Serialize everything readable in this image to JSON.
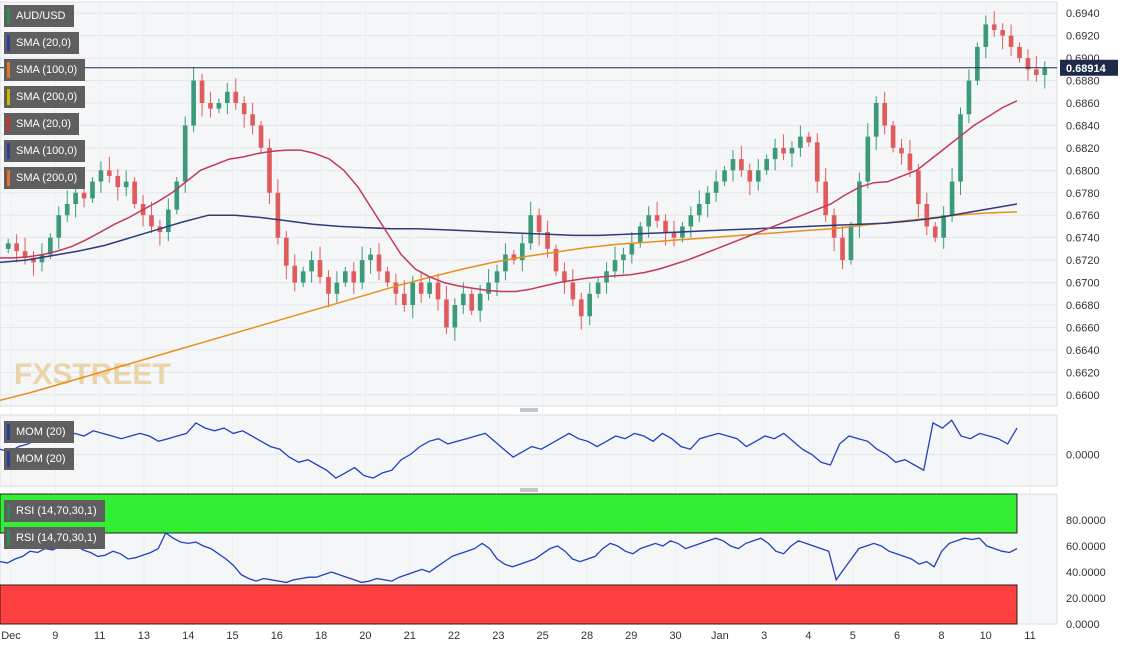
{
  "chart_data": [
    {
      "type": "candlestick",
      "symbol": "AUD/USD",
      "last_price": "0.68914",
      "ylim": [
        0.659,
        0.695
      ],
      "y_ticks": [
        "0.6940",
        "0.6920",
        "0.6900",
        "0.6880",
        "0.6860",
        "0.6840",
        "0.6820",
        "0.6800",
        "0.6780",
        "0.6760",
        "0.6740",
        "0.6720",
        "0.6700",
        "0.6680",
        "0.6660",
        "0.6640",
        "0.6620",
        "0.6600"
      ],
      "x_labels": [
        "Dec",
        "9",
        "11",
        "13",
        "14",
        "15",
        "16",
        "18",
        "20",
        "21",
        "22",
        "23",
        "25",
        "28",
        "29",
        "30",
        "Jan",
        "3",
        "4",
        "5",
        "6",
        "8",
        "10",
        "11"
      ],
      "legend": [
        {
          "label": "AUD/USD",
          "color": "#2e8b57"
        },
        {
          "label": "SMA (20,0)",
          "color": "#2c3e9e"
        },
        {
          "label": "SMA (100,0)",
          "color": "#e8722a"
        },
        {
          "label": "SMA (200,0)",
          "color": "#c9b800"
        },
        {
          "label": "SMA (20,0)",
          "color": "#c0392b"
        },
        {
          "label": "SMA (100,0)",
          "color": "#2c3e9e"
        },
        {
          "label": "SMA (200,0)",
          "color": "#e8722a"
        }
      ],
      "series_colors": {
        "up": "#3a9a7a",
        "down": "#e05c5c",
        "sma20": "#c23a5a",
        "sma100": "#2f3a7a",
        "sma200": "#e8901a"
      },
      "closes": [
        0.6735,
        0.6728,
        0.6722,
        0.6718,
        0.6725,
        0.674,
        0.676,
        0.677,
        0.678,
        0.6775,
        0.679,
        0.68,
        0.6795,
        0.6785,
        0.679,
        0.677,
        0.676,
        0.675,
        0.6745,
        0.6765,
        0.679,
        0.684,
        0.688,
        0.686,
        0.6855,
        0.686,
        0.687,
        0.686,
        0.685,
        0.684,
        0.682,
        0.678,
        0.674,
        0.6715,
        0.67,
        0.671,
        0.672,
        0.6705,
        0.669,
        0.67,
        0.671,
        0.67,
        0.672,
        0.6725,
        0.671,
        0.67,
        0.669,
        0.668,
        0.67,
        0.669,
        0.67,
        0.6685,
        0.666,
        0.668,
        0.669,
        0.6675,
        0.669,
        0.67,
        0.671,
        0.6725,
        0.672,
        0.6735,
        0.676,
        0.6745,
        0.673,
        0.671,
        0.67,
        0.6685,
        0.667,
        0.669,
        0.67,
        0.671,
        0.672,
        0.6725,
        0.6735,
        0.675,
        0.676,
        0.6755,
        0.6745,
        0.674,
        0.675,
        0.676,
        0.677,
        0.678,
        0.679,
        0.68,
        0.681,
        0.68,
        0.679,
        0.68,
        0.681,
        0.682,
        0.6815,
        0.682,
        0.683,
        0.6825,
        0.679,
        0.676,
        0.674,
        0.672,
        0.675,
        0.679,
        0.683,
        0.686,
        0.684,
        0.682,
        0.6815,
        0.68,
        0.677,
        0.675,
        0.674,
        0.676,
        0.679,
        0.685,
        0.688,
        0.691,
        0.693,
        0.6925,
        0.692,
        0.691,
        0.69,
        0.689,
        0.6885,
        0.6891
      ],
      "sma20": [
        0.6722,
        0.6722,
        0.6723,
        0.6725,
        0.6728,
        0.6732,
        0.6738,
        0.6745,
        0.6752,
        0.6758,
        0.6765,
        0.6772,
        0.678,
        0.679,
        0.68,
        0.6805,
        0.681,
        0.6812,
        0.6815,
        0.6817,
        0.6818,
        0.6818,
        0.6815,
        0.681,
        0.68,
        0.6785,
        0.6765,
        0.6745,
        0.6725,
        0.6712,
        0.6705,
        0.67,
        0.6697,
        0.6695,
        0.6693,
        0.6692,
        0.6692,
        0.6694,
        0.6697,
        0.67,
        0.6702,
        0.6704,
        0.6705,
        0.6706,
        0.6707,
        0.6709,
        0.6712,
        0.6716,
        0.672,
        0.6725,
        0.673,
        0.6735,
        0.674,
        0.6745,
        0.675,
        0.6755,
        0.676,
        0.6765,
        0.677,
        0.6778,
        0.6785,
        0.6789,
        0.679,
        0.6795,
        0.68,
        0.681,
        0.682,
        0.683,
        0.684,
        0.6848,
        0.6856,
        0.6862
      ],
      "sma100": [
        0.6718,
        0.672,
        0.6724,
        0.6728,
        0.6733,
        0.674,
        0.6747,
        0.6754,
        0.676,
        0.676,
        0.6758,
        0.6755,
        0.6752,
        0.675,
        0.6749,
        0.6748,
        0.6748,
        0.6747,
        0.6746,
        0.6745,
        0.6744,
        0.6743,
        0.6742,
        0.6742,
        0.6743,
        0.6744,
        0.6745,
        0.6746,
        0.6747,
        0.6748,
        0.6749,
        0.675,
        0.6751,
        0.6752,
        0.6753,
        0.6755,
        0.6758,
        0.6762,
        0.6766,
        0.677
      ],
      "sma200": [
        0.6595,
        0.6602,
        0.661,
        0.6618,
        0.6626,
        0.6634,
        0.6642,
        0.665,
        0.6658,
        0.6666,
        0.6674,
        0.6682,
        0.669,
        0.6698,
        0.6705,
        0.6712,
        0.6718,
        0.6723,
        0.6727,
        0.6731,
        0.6734,
        0.6736,
        0.6738,
        0.674,
        0.6742,
        0.6744,
        0.6746,
        0.6748,
        0.6751,
        0.6754,
        0.6757,
        0.676,
        0.6762,
        0.6763
      ]
    },
    {
      "type": "line",
      "legend": [
        "MOM (20)",
        "MOM (20)"
      ],
      "y_ticks": [
        "0.0000"
      ],
      "color": "#2240c0",
      "values": [
        0.2,
        0.1,
        0.3,
        0.4,
        0.6,
        0.5,
        0.7,
        0.6,
        0.8,
        0.7,
        0.9,
        0.8,
        0.7,
        0.6,
        0.7,
        0.8,
        0.7,
        0.5,
        0.6,
        0.7,
        0.8,
        1.2,
        1.0,
        0.9,
        1.0,
        0.8,
        0.9,
        0.7,
        0.5,
        0.3,
        0.2,
        -0.1,
        -0.3,
        -0.2,
        -0.4,
        -0.6,
        -0.9,
        -0.7,
        -0.5,
        -0.8,
        -0.9,
        -0.7,
        -0.6,
        -0.2,
        0.0,
        0.3,
        0.5,
        0.6,
        0.4,
        0.5,
        0.6,
        0.7,
        0.8,
        0.5,
        0.2,
        -0.1,
        0.1,
        0.3,
        0.2,
        0.4,
        0.6,
        0.8,
        0.6,
        0.5,
        0.3,
        0.5,
        0.7,
        0.6,
        0.8,
        0.7,
        0.5,
        0.8,
        0.6,
        0.3,
        0.2,
        0.6,
        0.7,
        0.8,
        0.7,
        0.6,
        0.3,
        0.5,
        0.7,
        0.6,
        0.8,
        0.5,
        0.2,
        0.0,
        -0.3,
        -0.4,
        0.4,
        0.7,
        0.6,
        0.5,
        0.2,
        0.0,
        -0.3,
        -0.2,
        -0.4,
        -0.6,
        1.2,
        1.0,
        1.3,
        0.7,
        0.6,
        0.8,
        0.7,
        0.6,
        0.4,
        1.0
      ]
    },
    {
      "type": "line",
      "legend": [
        "RSI (14,70,30,1)",
        "RSI (14,70,30,1)"
      ],
      "y_ticks": [
        "80.0000",
        "60.0000",
        "40.0000",
        "20.0000",
        "0.0000"
      ],
      "ylim": [
        0,
        100
      ],
      "overbought": 70,
      "oversold": 30,
      "color": "#2240c0",
      "values": [
        48,
        47,
        50,
        52,
        56,
        55,
        58,
        57,
        60,
        58,
        61,
        57,
        55,
        52,
        53,
        56,
        54,
        50,
        51,
        53,
        55,
        58,
        70,
        66,
        63,
        62,
        63,
        60,
        58,
        54,
        50,
        45,
        38,
        35,
        33,
        35,
        34,
        33,
        32,
        34,
        35,
        36,
        36,
        38,
        40,
        38,
        36,
        34,
        32,
        33,
        35,
        34,
        33,
        36,
        38,
        40,
        42,
        40,
        44,
        48,
        52,
        54,
        56,
        58,
        62,
        58,
        50,
        46,
        44,
        46,
        48,
        50,
        54,
        58,
        60,
        56,
        50,
        48,
        50,
        52,
        58,
        62,
        60,
        56,
        54,
        58,
        60,
        62,
        60,
        64,
        62,
        58,
        60,
        62,
        64,
        66,
        64,
        60,
        58,
        62,
        64,
        66,
        62,
        56,
        54,
        60,
        64,
        62,
        60,
        58,
        56,
        34,
        42,
        50,
        58,
        60,
        62,
        60,
        56,
        54,
        52,
        50,
        46,
        48,
        44,
        56,
        62,
        64,
        66,
        65,
        66,
        60,
        58,
        56,
        55,
        58
      ]
    }
  ]
}
